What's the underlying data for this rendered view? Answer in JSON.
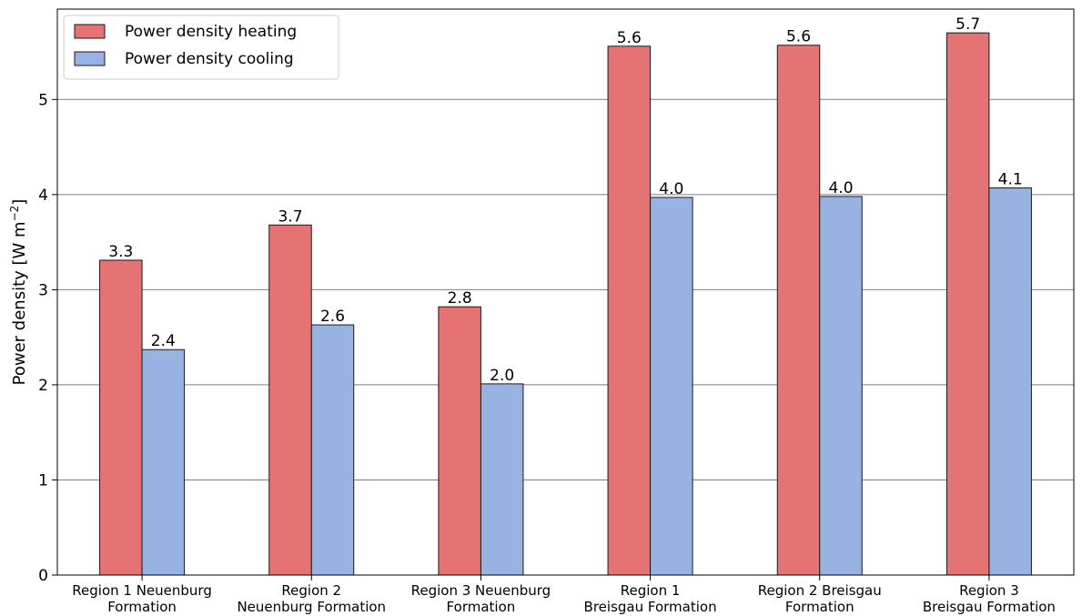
{
  "chart_data": {
    "type": "bar",
    "categories": [
      [
        "Region 1 Neuenburg",
        "Formation"
      ],
      [
        "Region 2",
        "Neuenburg Formation"
      ],
      [
        "Region 3 Neuenburg",
        "Formation"
      ],
      [
        "Region 1",
        "Breisgau Formation"
      ],
      [
        "Region 2 Breisgau",
        "Formation"
      ],
      [
        "Region 3",
        "Breisgau Formation"
      ]
    ],
    "series": [
      {
        "name": "Power density heating",
        "values": [
          3.31,
          3.68,
          2.82,
          5.56,
          5.57,
          5.7
        ],
        "labels": [
          "3.3",
          "3.7",
          "2.8",
          "5.6",
          "5.6",
          "5.7"
        ],
        "color": "#e57373"
      },
      {
        "name": "Power density cooling",
        "values": [
          2.37,
          2.63,
          2.01,
          3.97,
          3.98,
          4.07
        ],
        "labels": [
          "2.4",
          "2.6",
          "2.0",
          "4.0",
          "4.0",
          "4.1"
        ],
        "color": "#98b3e2"
      }
    ],
    "title": "",
    "xlabel": "",
    "ylabel": "Power density [W m",
    "ylabel_superscript": "−2",
    "ylabel_suffix": "]",
    "ylim": [
      0,
      5.95
    ],
    "yticks": [
      0,
      1,
      2,
      3,
      4,
      5
    ],
    "grid": "horizontal",
    "legend": "top-left"
  }
}
